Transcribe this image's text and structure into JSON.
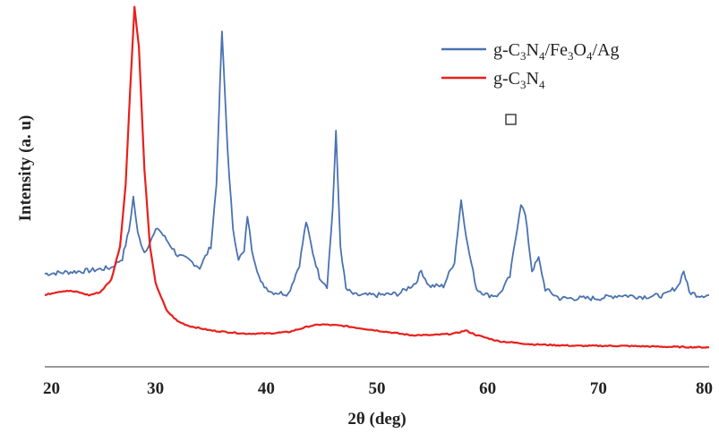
{
  "chart_data": {
    "type": "line",
    "xlabel": "2θ (deg)",
    "ylabel": "Intensity (a. u)",
    "xlim": [
      20,
      80
    ],
    "ylim": [
      0,
      100
    ],
    "xticks": [
      20,
      30,
      40,
      50,
      60,
      70,
      80
    ],
    "grid": false,
    "legend_position": "top-right",
    "series": [
      {
        "name": "g-C3N4/Fe3O4/Ag",
        "color": "#4a72b0",
        "points": [
          [
            20,
            21
          ],
          [
            22,
            21.5
          ],
          [
            24,
            22
          ],
          [
            26,
            23
          ],
          [
            27,
            26
          ],
          [
            27.6,
            35
          ],
          [
            28,
            46
          ],
          [
            28.4,
            34
          ],
          [
            29,
            28
          ],
          [
            30.2,
            36
          ],
          [
            31,
            32
          ],
          [
            32,
            27
          ],
          [
            33,
            25.5
          ],
          [
            34,
            23
          ],
          [
            35,
            30
          ],
          [
            35.5,
            50
          ],
          [
            36,
            100
          ],
          [
            36.5,
            62
          ],
          [
            37,
            35
          ],
          [
            37.5,
            26
          ],
          [
            38,
            28
          ],
          [
            38.3,
            40
          ],
          [
            38.7,
            29
          ],
          [
            39.5,
            18
          ],
          [
            40.5,
            15
          ],
          [
            42,
            14.5
          ],
          [
            43,
            24
          ],
          [
            43.6,
            38
          ],
          [
            44.2,
            28
          ],
          [
            44.8,
            20
          ],
          [
            45.5,
            17
          ],
          [
            46,
            42
          ],
          [
            46.3,
            67
          ],
          [
            46.7,
            30
          ],
          [
            47.2,
            16
          ],
          [
            48,
            14
          ],
          [
            50,
            14
          ],
          [
            52,
            14.5
          ],
          [
            53.5,
            18
          ],
          [
            54,
            22
          ],
          [
            54.7,
            17
          ],
          [
            56,
            17
          ],
          [
            57,
            25
          ],
          [
            57.6,
            45
          ],
          [
            58.2,
            30
          ],
          [
            59,
            16
          ],
          [
            60,
            14
          ],
          [
            61,
            14
          ],
          [
            62,
            20
          ],
          [
            63,
            44
          ],
          [
            63.4,
            40
          ],
          [
            64,
            22
          ],
          [
            64.6,
            26
          ],
          [
            65.2,
            16
          ],
          [
            66.5,
            13
          ],
          [
            68,
            13
          ],
          [
            70,
            13
          ],
          [
            72,
            14
          ],
          [
            74,
            13.5
          ],
          [
            76,
            14
          ],
          [
            77.2,
            17
          ],
          [
            77.7,
            22
          ],
          [
            78.2,
            15
          ],
          [
            79,
            14
          ],
          [
            80,
            14
          ]
        ]
      },
      {
        "name": "g-C3N4",
        "color": "#e8201c",
        "points": [
          [
            20,
            14
          ],
          [
            21,
            15
          ],
          [
            22,
            15.5
          ],
          [
            23,
            15
          ],
          [
            24,
            14
          ],
          [
            25,
            15
          ],
          [
            26,
            19
          ],
          [
            26.8,
            30
          ],
          [
            27.3,
            50
          ],
          [
            27.7,
            80
          ],
          [
            28.1,
            108
          ],
          [
            28.5,
            95
          ],
          [
            29,
            55
          ],
          [
            29.5,
            30
          ],
          [
            30,
            18
          ],
          [
            31,
            9
          ],
          [
            32,
            5.5
          ],
          [
            33,
            4
          ],
          [
            35,
            2.5
          ],
          [
            38,
            1.5
          ],
          [
            40,
            1.5
          ],
          [
            42,
            2
          ],
          [
            44,
            4
          ],
          [
            45,
            4.5
          ],
          [
            47,
            4
          ],
          [
            50,
            2.5
          ],
          [
            53,
            1
          ],
          [
            55,
            1
          ],
          [
            57,
            1.5
          ],
          [
            58,
            2.5
          ],
          [
            59,
            1
          ],
          [
            61,
            -1
          ],
          [
            64,
            -2
          ],
          [
            68,
            -2.5
          ],
          [
            72,
            -2.5
          ],
          [
            76,
            -2.8
          ],
          [
            80,
            -3
          ]
        ]
      }
    ]
  },
  "legend": {
    "entries": [
      {
        "prefix": "g-C",
        "s1": "3",
        "mid1": "N",
        "s2": "4",
        "mid2": "/Fe",
        "s3": "3",
        "mid3": "O",
        "s4": "4",
        "suffix": "/Ag",
        "color": "#4a72b0"
      },
      {
        "prefix": "g-C",
        "s1": "3",
        "mid1": "N",
        "s2": "4",
        "color": "#e8201c"
      }
    ]
  }
}
